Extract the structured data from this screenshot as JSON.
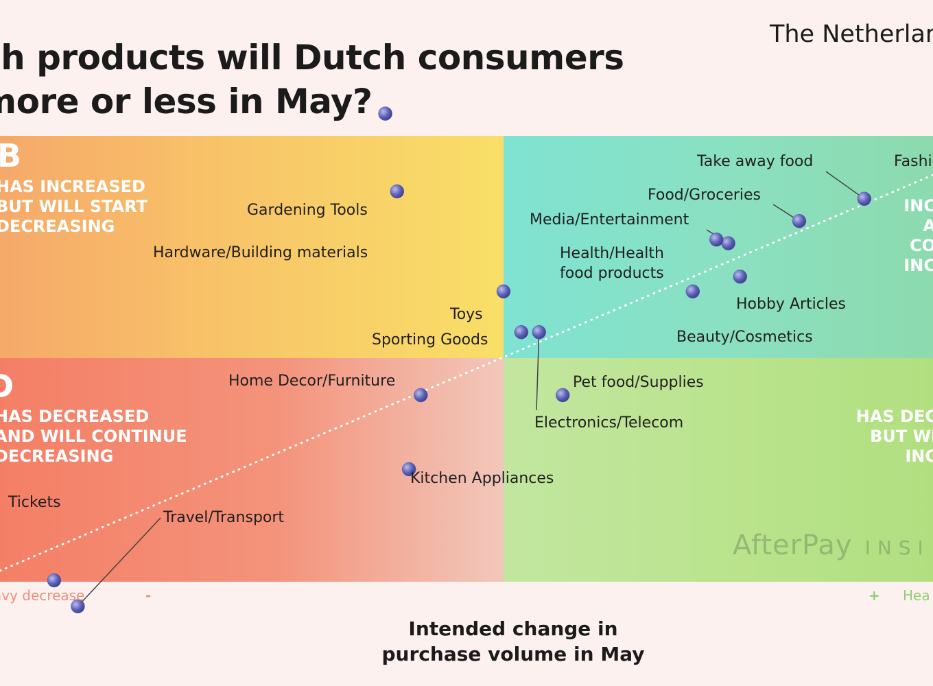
{
  "header": {
    "title_line1": "ch products will Dutch consumers",
    "title_line2": "more or less in May?",
    "country": "The Netherlar"
  },
  "quadrants": {
    "b": {
      "letter": "B",
      "desc": "HAS INCREASED\nBUT WILL START\nDECREASING"
    },
    "a": {
      "desc": "INC\nA\nCO\nINC"
    },
    "d": {
      "letter": "D",
      "desc": "HAS DECREASED\nAND WILL CONTINUE\nDECREASING"
    },
    "c": {
      "desc": "HAS DEC\nBUT WI\nINC"
    }
  },
  "axis": {
    "left_label": "avy decrease",
    "minus": "-",
    "plus": "+",
    "right_label": "Hea",
    "xlabel_line1": "Intended change in",
    "xlabel_line2": "purchase volume in May"
  },
  "watermark": {
    "brand": "AfterPay",
    "suffix": "INSI"
  },
  "colors": {
    "marker": "#5a5fb4",
    "leader": "#444444",
    "trend": "#ffffff",
    "axis_gradient_start": "#f2a48f",
    "axis_gradient_end": "#9bd27a"
  },
  "chart_data": {
    "type": "scatter",
    "title": "Which products will Dutch consumers buy more or less in May?",
    "xlabel": "Intended change in purchase volume in May",
    "ylabel": "",
    "points": [
      {
        "name": "Take away food",
        "x": 0.61,
        "y": 0.43
      },
      {
        "name": "Fashion",
        "x": 0.74,
        "y": 0.55
      },
      {
        "name": "Food/Groceries",
        "x": 0.5,
        "y": 0.37
      },
      {
        "name": "Media/Entertainment",
        "x": 0.38,
        "y": 0.31
      },
      {
        "name": "Health/Health food products",
        "x": 0.36,
        "y": 0.32
      },
      {
        "name": "Hobby Articles",
        "x": 0.4,
        "y": 0.22
      },
      {
        "name": "Beauty/Cosmetics",
        "x": 0.32,
        "y": 0.18
      },
      {
        "name": "Toys",
        "x": 0.0,
        "y": 0.18
      },
      {
        "name": "Sporting Goods",
        "x": 0.03,
        "y": 0.07
      },
      {
        "name": "Electronics/Telecom",
        "x": 0.06,
        "y": 0.07
      },
      {
        "name": "Gardening Tools",
        "x": -0.2,
        "y": 0.66
      },
      {
        "name": "Hardware/Building materials",
        "x": -0.18,
        "y": 0.45
      },
      {
        "name": "Pet food/Supplies",
        "x": 0.1,
        "y": -0.1
      },
      {
        "name": "Home Decor/Furniture",
        "x": -0.14,
        "y": -0.1
      },
      {
        "name": "Kitchen Appliances",
        "x": -0.16,
        "y": -0.3
      },
      {
        "name": "Tickets",
        "x": -0.76,
        "y": -0.6
      },
      {
        "name": "Travel/Transport",
        "x": -0.72,
        "y": -0.67
      }
    ],
    "quadrant_split": {
      "x": 0,
      "y": 0
    },
    "trendline": "dotted diagonal x = y",
    "xlim": [
      -0.95,
      0.8
    ],
    "ylim": [
      -0.95,
      0.95
    ],
    "legend": "none"
  }
}
